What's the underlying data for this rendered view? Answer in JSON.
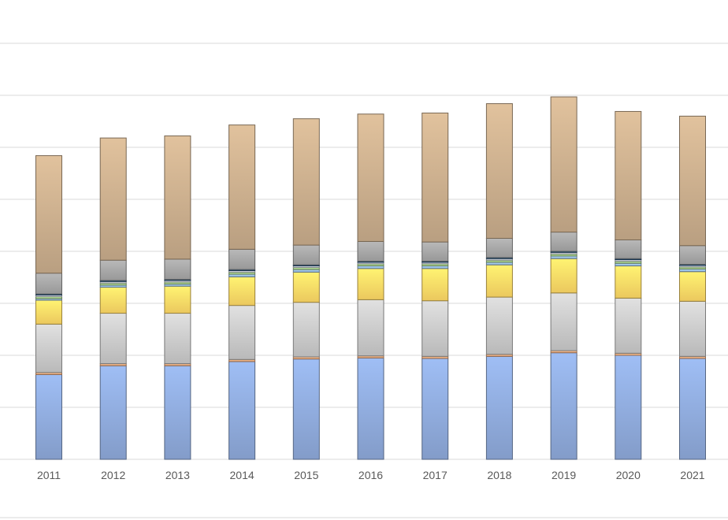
{
  "chart_data": {
    "type": "bar",
    "stacked": true,
    "title": "",
    "xlabel": "",
    "ylabel": "",
    "categories": [
      "2011",
      "2012",
      "2013",
      "2014",
      "2015",
      "2016",
      "2017",
      "2018",
      "2019",
      "2020",
      "2021"
    ],
    "ylim": [
      0,
      1
    ],
    "grid": true,
    "legend": "none",
    "series": [
      {
        "color": "#8eaadb",
        "values": [
          0.163,
          0.18,
          0.18,
          0.188,
          0.193,
          0.195,
          0.194,
          0.198,
          0.205,
          0.2,
          0.194
        ]
      },
      {
        "color": "#f4b183",
        "values": [
          0.004,
          0.004,
          0.004,
          0.004,
          0.004,
          0.004,
          0.004,
          0.004,
          0.004,
          0.004,
          0.004
        ]
      },
      {
        "color": "#c9c9c9",
        "values": [
          0.093,
          0.097,
          0.097,
          0.104,
          0.105,
          0.108,
          0.107,
          0.11,
          0.111,
          0.106,
          0.106
        ]
      },
      {
        "color": "#ffd966",
        "values": [
          0.046,
          0.05,
          0.052,
          0.055,
          0.058,
          0.06,
          0.062,
          0.062,
          0.066,
          0.062,
          0.057
        ]
      },
      {
        "color": "#9dc3e6",
        "values": [
          0.003,
          0.004,
          0.004,
          0.005,
          0.005,
          0.005,
          0.005,
          0.005,
          0.005,
          0.005,
          0.005
        ]
      },
      {
        "color": "#a9d18e",
        "values": [
          0.004,
          0.004,
          0.004,
          0.004,
          0.004,
          0.004,
          0.004,
          0.004,
          0.004,
          0.004,
          0.004
        ]
      },
      {
        "color": "#d6dce5",
        "values": [
          0.003,
          0.003,
          0.003,
          0.003,
          0.003,
          0.003,
          0.003,
          0.003,
          0.003,
          0.003,
          0.003
        ]
      },
      {
        "color": "#1f4e79",
        "values": [
          0.002,
          0.002,
          0.002,
          0.002,
          0.002,
          0.002,
          0.002,
          0.002,
          0.002,
          0.002,
          0.002
        ]
      },
      {
        "color": "#a5a5a5",
        "values": [
          0.04,
          0.039,
          0.039,
          0.039,
          0.038,
          0.038,
          0.037,
          0.037,
          0.037,
          0.036,
          0.036
        ]
      },
      {
        "color": "#c9ad8c",
        "values": [
          0.226,
          0.235,
          0.237,
          0.239,
          0.243,
          0.245,
          0.248,
          0.259,
          0.26,
          0.247,
          0.249
        ]
      }
    ]
  }
}
